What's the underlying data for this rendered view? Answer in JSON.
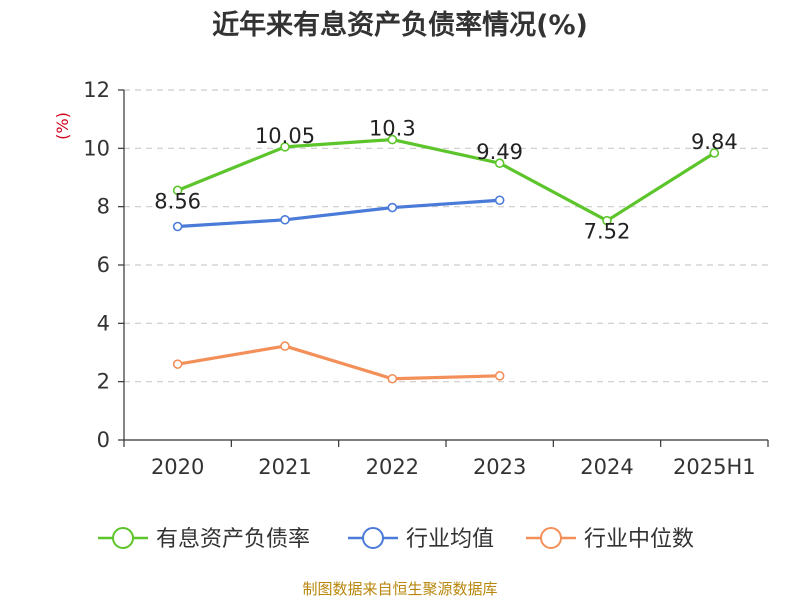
{
  "chart_data": {
    "type": "line",
    "title": "近年来有息资产负债率情况(%)",
    "ylabel": "(%)",
    "categories": [
      "2020",
      "2021",
      "2022",
      "2023",
      "2024",
      "2025H1"
    ],
    "ylim": [
      0,
      12
    ],
    "yticks": [
      0,
      2,
      4,
      6,
      8,
      10,
      12
    ],
    "grid": true,
    "legend_position": "bottom",
    "series": [
      {
        "name": "有息资产负债率",
        "color": "#5cc52b",
        "values": [
          8.56,
          10.05,
          10.3,
          9.49,
          7.52,
          9.84
        ],
        "labels": [
          "8.56",
          "10.05",
          "10.3",
          "9.49",
          "7.52",
          "9.84"
        ]
      },
      {
        "name": "行业均值",
        "color": "#4a7bd8",
        "values": [
          7.32,
          7.55,
          7.97,
          8.22,
          null,
          null
        ]
      },
      {
        "name": "行业中位数",
        "color": "#f3905a",
        "values": [
          2.6,
          3.22,
          2.1,
          2.2,
          null,
          null
        ]
      }
    ]
  },
  "source": "制图数据来自恒生聚源数据库"
}
